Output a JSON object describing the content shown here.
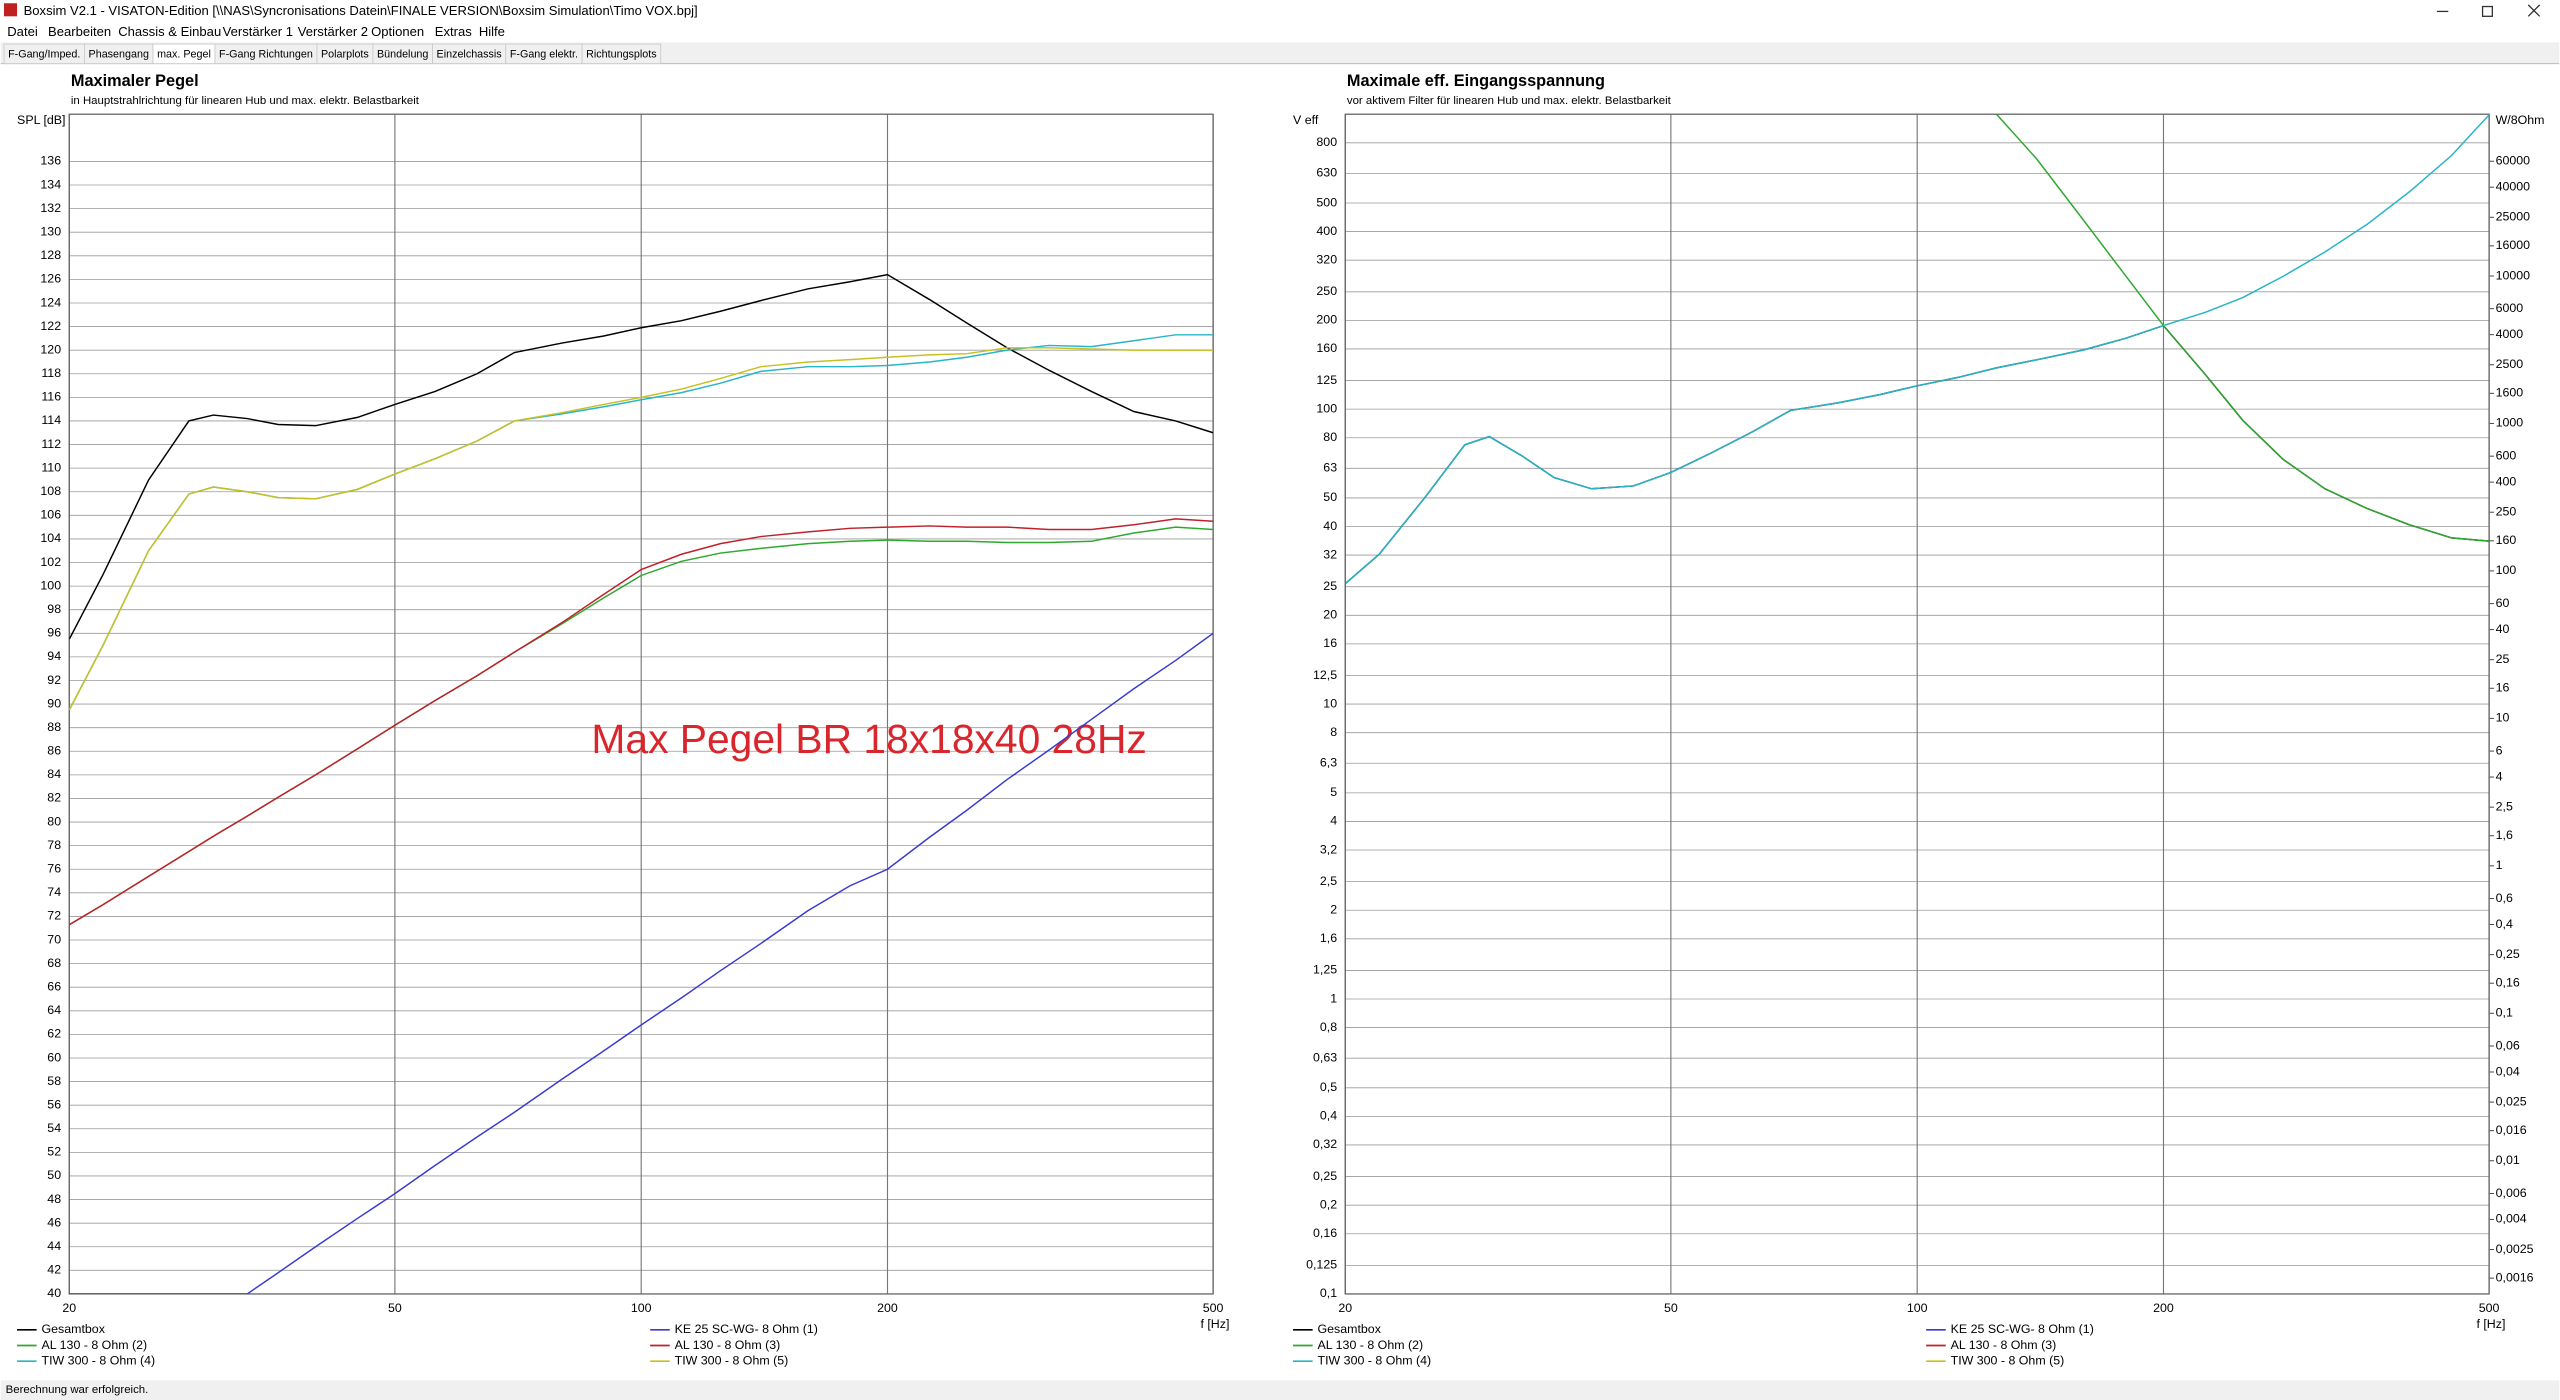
{
  "window_title": "Boxsim V2.1 - VISATON-Edition [\\\\NAS\\Syncronisations Datein\\FINALE VERSION\\Boxsim Simulation\\Timo VOX.bpj]",
  "menu": [
    "Datei",
    "Bearbeiten",
    "Chassis & Einbau",
    "Verstärker 1",
    "Verstärker 2",
    "Optionen",
    "Extras",
    "Hilfe"
  ],
  "tabs": [
    "F-Gang/Imped.",
    "Phasengang",
    "max. Pegel",
    "F-Gang Richtungen",
    "Polarplots",
    "Bündelung",
    "Einzelchassis",
    "F-Gang elektr.",
    "Richtungsplots"
  ],
  "active_tab": 2,
  "status_bar": "Berechnung war erfolgreich.",
  "chart_data": [
    {
      "type": "line",
      "title": "Maximaler Pegel",
      "subtitle": "in Hauptstrahlrichtung für linearen Hub und max. elektr. Belastbarkeit",
      "xlabel": "f [Hz]",
      "ylabel": "SPL [dB]",
      "xscale": "log",
      "grid": true,
      "legend": "bottom",
      "xlim": [
        20,
        500
      ],
      "xticks": [
        20,
        50,
        100,
        200,
        500
      ],
      "ylim": [
        40,
        140
      ],
      "yticks": [
        40,
        42,
        44,
        46,
        48,
        50,
        52,
        54,
        56,
        58,
        60,
        62,
        64,
        66,
        68,
        70,
        72,
        74,
        76,
        78,
        80,
        82,
        84,
        86,
        88,
        90,
        92,
        94,
        96,
        98,
        100,
        102,
        104,
        106,
        108,
        110,
        112,
        114,
        116,
        118,
        120,
        122,
        124,
        126,
        128,
        130,
        132,
        134,
        136
      ],
      "annotations": [
        {
          "text": "Max Pegel BR 18x18x40 28Hz",
          "color": "#d9262c"
        }
      ],
      "x": [
        20,
        22,
        25,
        28,
        30,
        33,
        36,
        40,
        45,
        50,
        56,
        63,
        70,
        80,
        90,
        100,
        112,
        125,
        140,
        160,
        180,
        200,
        225,
        250,
        280,
        315,
        355,
        400,
        450,
        500
      ],
      "series": [
        {
          "name": "Gesamtbox",
          "color": "#000000",
          "values": [
            95.5,
            101,
            109,
            114,
            114.5,
            114.2,
            113.7,
            113.6,
            114.3,
            115.4,
            116.5,
            118,
            119.8,
            120.6,
            121.2,
            121.9,
            122.5,
            123.3,
            124.2,
            125.2,
            125.8,
            126.4,
            124.3,
            122.3,
            120.2,
            118.3,
            116.5,
            114.8,
            114,
            113
          ]
        },
        {
          "name": "KE 25 SC-WG- 8 Ohm (1)",
          "color": "#3a3ad0",
          "values": [
            40,
            40,
            40,
            40,
            40,
            40,
            41.8,
            44,
            46.4,
            48.5,
            50.9,
            53.3,
            55.4,
            58.2,
            60.6,
            62.8,
            65.1,
            67.4,
            69.7,
            72.5,
            74.6,
            76,
            78.7,
            81,
            83.6,
            86.1,
            88.7,
            91.3,
            93.7,
            96
          ]
        },
        {
          "name": "AL 130 - 8 Ohm (2)",
          "color": "#2ea82e",
          "values": [
            71.3,
            73,
            75.4,
            77.5,
            78.8,
            80.5,
            82.1,
            84,
            86.2,
            88.2,
            90.3,
            92.4,
            94.4,
            96.8,
            99,
            100.9,
            102.1,
            102.8,
            103.2,
            103.6,
            103.8,
            103.9,
            103.8,
            103.8,
            103.7,
            103.7,
            103.8,
            104.5,
            105,
            104.8
          ]
        },
        {
          "name": "AL 130 - 8 Ohm (3)",
          "color": "#c0202a",
          "values": [
            71.3,
            73,
            75.4,
            77.5,
            78.8,
            80.5,
            82.1,
            84,
            86.2,
            88.2,
            90.3,
            92.4,
            94.4,
            96.9,
            99.3,
            101.4,
            102.7,
            103.6,
            104.2,
            104.6,
            104.9,
            105,
            105.1,
            105,
            105,
            104.8,
            104.8,
            105.2,
            105.7,
            105.5
          ]
        },
        {
          "name": "TIW 300 - 8 Ohm (4)",
          "color": "#27b5c8",
          "values": [
            89.5,
            95,
            103,
            107.8,
            108.4,
            108,
            107.5,
            107.4,
            108.2,
            109.5,
            110.8,
            112.3,
            114,
            114.6,
            115.2,
            115.8,
            116.4,
            117.2,
            118.2,
            118.6,
            118.6,
            118.7,
            119,
            119.4,
            120,
            120.4,
            120.3,
            120.8,
            121.3,
            121.3
          ]
        },
        {
          "name": "TIW 300 - 8 Ohm (5)",
          "color": "#c8c020",
          "values": [
            89.5,
            95,
            103,
            107.8,
            108.4,
            108,
            107.5,
            107.4,
            108.2,
            109.5,
            110.8,
            112.3,
            114,
            114.7,
            115.4,
            116,
            116.7,
            117.6,
            118.6,
            119,
            119.2,
            119.4,
            119.6,
            119.7,
            120.2,
            120.2,
            120.1,
            120,
            120,
            120
          ]
        }
      ]
    },
    {
      "type": "line",
      "title": "Maximale eff. Eingangsspannung",
      "subtitle": "vor aktivem Filter für linearen Hub und max. elektr. Belastbarkeit",
      "xlabel": "f [Hz]",
      "ylabel": "V eff",
      "y2label": "W/8Ohm",
      "xscale": "log",
      "yscale": "log",
      "y2scale": "log",
      "grid": true,
      "legend": "bottom",
      "xlim": [
        20,
        500
      ],
      "xticks": [
        20,
        50,
        100,
        200,
        500
      ],
      "ylim": [
        0.1,
        1000
      ],
      "yticks": [
        {
          "value": 0.1,
          "label": "0,1"
        },
        {
          "value": 0.125,
          "label": "0,125"
        },
        {
          "value": 0.16,
          "label": "0,16"
        },
        {
          "value": 0.2,
          "label": "0,2"
        },
        {
          "value": 0.25,
          "label": "0,25"
        },
        {
          "value": 0.32,
          "label": "0,32"
        },
        {
          "value": 0.4,
          "label": "0,4"
        },
        {
          "value": 0.5,
          "label": "0,5"
        },
        {
          "value": 0.63,
          "label": "0,63"
        },
        {
          "value": 0.8,
          "label": "0,8"
        },
        1,
        {
          "value": 1.25,
          "label": "1,25"
        },
        {
          "value": 1.6,
          "label": "1,6"
        },
        2,
        {
          "value": 2.5,
          "label": "2,5"
        },
        {
          "value": 3.2,
          "label": "3,2"
        },
        4,
        5,
        {
          "value": 6.3,
          "label": "6,3"
        },
        8,
        10,
        {
          "value": 12.5,
          "label": "12,5"
        },
        16,
        20,
        25,
        32,
        40,
        50,
        63,
        80,
        100,
        125,
        160,
        200,
        250,
        320,
        400,
        500,
        630,
        800
      ],
      "y2lim": [
        0.00125,
        125000
      ],
      "y2ticks": [
        {
          "value": 0.0016,
          "label": "0,0016"
        },
        {
          "value": 0.0025,
          "label": "0,0025"
        },
        {
          "value": 0.004,
          "label": "0,004"
        },
        {
          "value": 0.006,
          "label": "0,006"
        },
        {
          "value": 0.01,
          "label": "0,01"
        },
        {
          "value": 0.016,
          "label": "0,016"
        },
        {
          "value": 0.025,
          "label": "0,025"
        },
        {
          "value": 0.04,
          "label": "0,04"
        },
        {
          "value": 0.06,
          "label": "0,06"
        },
        {
          "value": 0.1,
          "label": "0,1"
        },
        {
          "value": 0.16,
          "label": "0,16"
        },
        {
          "value": 0.25,
          "label": "0,25"
        },
        {
          "value": 0.4,
          "label": "0,4"
        },
        {
          "value": 0.6,
          "label": "0,6"
        },
        1,
        {
          "value": 1.6,
          "label": "1,6"
        },
        {
          "value": 2.5,
          "label": "2,5"
        },
        4,
        6,
        10,
        16,
        25,
        40,
        60,
        100,
        160,
        250,
        400,
        600,
        1000,
        1600,
        2500,
        4000,
        6000,
        10000,
        16000,
        25000,
        40000,
        60000
      ],
      "x": [
        20,
        22,
        25,
        28,
        30,
        33,
        36,
        40,
        45,
        50,
        56,
        63,
        70,
        80,
        90,
        100,
        112,
        125,
        140,
        160,
        180,
        200,
        225,
        250,
        280,
        315,
        355,
        400,
        450,
        500
      ],
      "series": [
        {
          "name": "Gesamtbox",
          "color": "#000000",
          "values": [
            25.6,
            32.2,
            50,
            75.7,
            80.7,
            69,
            58.6,
            53.7,
            54.9,
            61,
            71,
            84,
            99,
            105,
            112,
            120,
            128,
            138,
            147,
            159,
            174,
            192,
            131,
            91.6,
            67.6,
            53.7,
            46,
            40.5,
            36.6,
            35.7
          ]
        },
        {
          "name": "KE 25 SC-WG- 8 Ohm (1)",
          "color": "#3a3ad0",
          "values": [
            null,
            null,
            null,
            null,
            null,
            null,
            null,
            null,
            null,
            null,
            null,
            null,
            null,
            null,
            null,
            null,
            null,
            null,
            null,
            null,
            null,
            null,
            null,
            null,
            null,
            null,
            null,
            null,
            null,
            null
          ]
        },
        {
          "name": "AL 130 - 8 Ohm (2)",
          "color": "#2ea82e",
          "values": [
            null,
            null,
            null,
            null,
            null,
            null,
            null,
            null,
            null,
            null,
            null,
            null,
            null,
            null,
            null,
            null,
            null,
            1000,
            705,
            434,
            282,
            192,
            131,
            91.6,
            67.6,
            53.7,
            46,
            40.5,
            36.6,
            35.7
          ]
        },
        {
          "name": "AL 130 - 8 Ohm (3)",
          "color": "#c0202a",
          "values": [
            null,
            null,
            null,
            null,
            null,
            null,
            null,
            null,
            null,
            null,
            null,
            null,
            null,
            null,
            null,
            null,
            null,
            null,
            null,
            null,
            null,
            null,
            null,
            null,
            null,
            null,
            null,
            null,
            null,
            null
          ]
        },
        {
          "name": "TIW 300 - 8 Ohm (4)",
          "color": "#27b5c8",
          "values": [
            25.6,
            32.2,
            50,
            75.7,
            80.7,
            69,
            58.6,
            53.7,
            54.9,
            61,
            71,
            84,
            99,
            105,
            112,
            120,
            128,
            138,
            147,
            159,
            174,
            192,
            213,
            239,
            282,
            341,
            424,
            547,
            725,
            995
          ]
        },
        {
          "name": "TIW 300 - 8 Ohm (5)",
          "color": "#c8c020",
          "values": [
            null,
            null,
            null,
            null,
            null,
            null,
            null,
            null,
            null,
            null,
            null,
            null,
            null,
            null,
            null,
            null,
            null,
            null,
            null,
            null,
            null,
            null,
            null,
            null,
            null,
            null,
            null,
            null,
            null,
            null
          ]
        }
      ]
    }
  ]
}
